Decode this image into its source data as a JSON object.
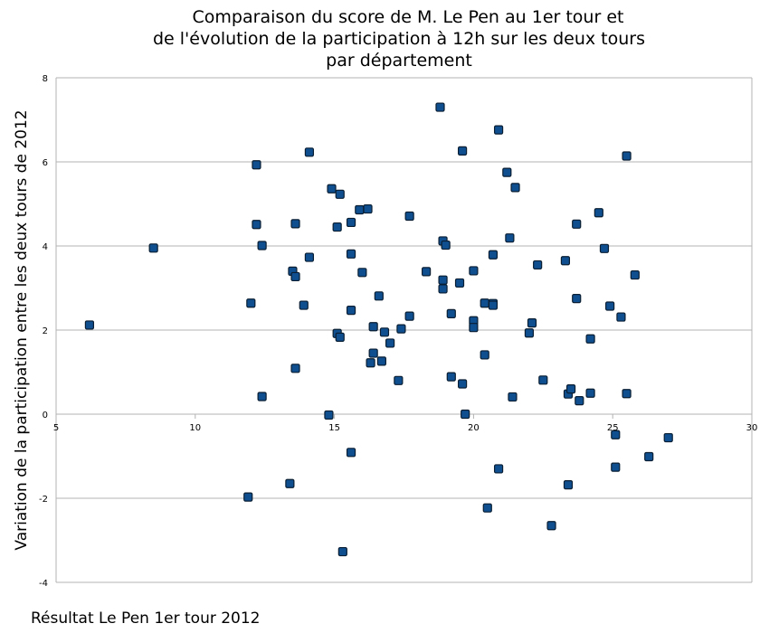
{
  "chart_data": {
    "type": "scatter",
    "title_lines": [
      "Comparaison du score de M. Le Pen au 1er tour et",
      "de l'évolution de la participation à 12h sur les deux tours",
      "par département"
    ],
    "xlabel": "Résultat Le Pen 1er tour 2012",
    "ylabel": "Variation de la participation entre les deux tours de 2012",
    "xlim": [
      5,
      30
    ],
    "ylim": [
      -4,
      8
    ],
    "x_ticks": [
      5,
      10,
      15,
      20,
      25,
      30
    ],
    "y_ticks": [
      -4,
      -2,
      0,
      2,
      4,
      6,
      8
    ],
    "grid": "horizontal",
    "legend": "none",
    "marker": "square",
    "colors": {
      "marker_fill": "#0f4e8f",
      "marker_stroke": "#0a1f33",
      "grid": "#b3b3b3",
      "axis": "#b3b3b3"
    },
    "points": [
      {
        "x": 6.2,
        "y": 2.12
      },
      {
        "x": 8.5,
        "y": 3.95
      },
      {
        "x": 11.9,
        "y": -1.97
      },
      {
        "x": 12.0,
        "y": 2.64
      },
      {
        "x": 12.2,
        "y": 5.93
      },
      {
        "x": 12.2,
        "y": 4.51
      },
      {
        "x": 12.4,
        "y": 4.01
      },
      {
        "x": 12.4,
        "y": 0.42
      },
      {
        "x": 13.4,
        "y": -1.65
      },
      {
        "x": 13.5,
        "y": 3.4
      },
      {
        "x": 13.6,
        "y": 3.27
      },
      {
        "x": 13.6,
        "y": 4.53
      },
      {
        "x": 13.6,
        "y": 1.09
      },
      {
        "x": 13.9,
        "y": 2.59
      },
      {
        "x": 14.1,
        "y": 6.23
      },
      {
        "x": 14.1,
        "y": 3.73
      },
      {
        "x": 14.8,
        "y": -0.02
      },
      {
        "x": 14.9,
        "y": 5.36
      },
      {
        "x": 15.1,
        "y": 4.45
      },
      {
        "x": 15.1,
        "y": 1.92
      },
      {
        "x": 15.2,
        "y": 5.23
      },
      {
        "x": 15.2,
        "y": 1.83
      },
      {
        "x": 15.3,
        "y": -3.27
      },
      {
        "x": 15.6,
        "y": 4.56
      },
      {
        "x": 15.6,
        "y": 3.81
      },
      {
        "x": 15.6,
        "y": 2.47
      },
      {
        "x": 15.6,
        "y": -0.91
      },
      {
        "x": 15.9,
        "y": 4.86
      },
      {
        "x": 16.0,
        "y": 3.37
      },
      {
        "x": 16.2,
        "y": 4.88
      },
      {
        "x": 16.3,
        "y": 1.22
      },
      {
        "x": 16.4,
        "y": 2.08
      },
      {
        "x": 16.4,
        "y": 1.45
      },
      {
        "x": 16.6,
        "y": 2.81
      },
      {
        "x": 16.7,
        "y": 1.26
      },
      {
        "x": 16.8,
        "y": 1.95
      },
      {
        "x": 17.0,
        "y": 1.69
      },
      {
        "x": 17.3,
        "y": 0.8
      },
      {
        "x": 17.4,
        "y": 2.03
      },
      {
        "x": 17.7,
        "y": 4.71
      },
      {
        "x": 17.7,
        "y": 2.33
      },
      {
        "x": 18.3,
        "y": 3.39
      },
      {
        "x": 18.8,
        "y": 7.3
      },
      {
        "x": 18.9,
        "y": 4.12
      },
      {
        "x": 18.9,
        "y": 3.19
      },
      {
        "x": 18.9,
        "y": 2.98
      },
      {
        "x": 19.0,
        "y": 4.02
      },
      {
        "x": 19.2,
        "y": 2.39
      },
      {
        "x": 19.2,
        "y": 0.89
      },
      {
        "x": 19.5,
        "y": 3.12
      },
      {
        "x": 19.6,
        "y": 6.26
      },
      {
        "x": 19.6,
        "y": 0.72
      },
      {
        "x": 19.7,
        "y": 0.0
      },
      {
        "x": 20.0,
        "y": 3.41
      },
      {
        "x": 20.0,
        "y": 2.22
      },
      {
        "x": 20.0,
        "y": 2.06
      },
      {
        "x": 20.4,
        "y": 2.64
      },
      {
        "x": 20.4,
        "y": 1.41
      },
      {
        "x": 20.5,
        "y": -2.23
      },
      {
        "x": 20.7,
        "y": 3.79
      },
      {
        "x": 20.7,
        "y": 2.63
      },
      {
        "x": 20.7,
        "y": 2.59
      },
      {
        "x": 20.9,
        "y": 6.76
      },
      {
        "x": 20.9,
        "y": -1.3
      },
      {
        "x": 21.2,
        "y": 5.75
      },
      {
        "x": 21.3,
        "y": 4.19
      },
      {
        "x": 21.4,
        "y": 0.41
      },
      {
        "x": 21.5,
        "y": 5.39
      },
      {
        "x": 22.0,
        "y": 1.93
      },
      {
        "x": 22.1,
        "y": 2.17
      },
      {
        "x": 22.3,
        "y": 3.55
      },
      {
        "x": 22.5,
        "y": 0.81
      },
      {
        "x": 22.8,
        "y": -2.65
      },
      {
        "x": 23.3,
        "y": 3.65
      },
      {
        "x": 23.4,
        "y": 0.48
      },
      {
        "x": 23.4,
        "y": -1.68
      },
      {
        "x": 23.5,
        "y": 0.6
      },
      {
        "x": 23.7,
        "y": 4.52
      },
      {
        "x": 23.7,
        "y": 2.75
      },
      {
        "x": 23.8,
        "y": 0.32
      },
      {
        "x": 24.2,
        "y": 1.79
      },
      {
        "x": 24.2,
        "y": 0.5
      },
      {
        "x": 24.5,
        "y": 4.79
      },
      {
        "x": 24.7,
        "y": 3.94
      },
      {
        "x": 24.9,
        "y": 2.57
      },
      {
        "x": 25.1,
        "y": -0.49
      },
      {
        "x": 25.1,
        "y": -1.26
      },
      {
        "x": 25.3,
        "y": 2.31
      },
      {
        "x": 25.5,
        "y": 6.14
      },
      {
        "x": 25.5,
        "y": 0.49
      },
      {
        "x": 25.8,
        "y": 3.31
      },
      {
        "x": 26.3,
        "y": -1.01
      },
      {
        "x": 27.0,
        "y": -0.56
      }
    ]
  }
}
